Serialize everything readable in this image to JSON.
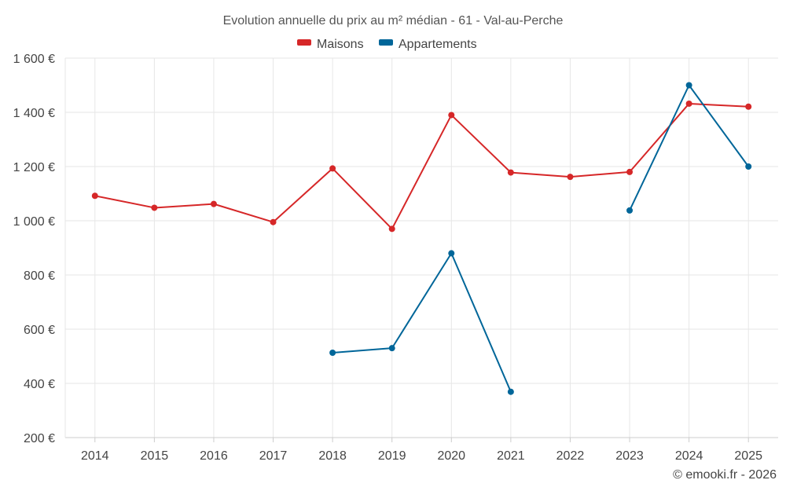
{
  "chart_data": {
    "type": "line",
    "title": "Evolution annuelle du prix au m² médian - 61 - Val-au-Perche",
    "x": [
      "2014",
      "2015",
      "2016",
      "2017",
      "2018",
      "2019",
      "2020",
      "2021",
      "2022",
      "2023",
      "2024",
      "2025"
    ],
    "ylim": [
      200,
      1600
    ],
    "yticks": [
      200,
      400,
      600,
      800,
      1000,
      1200,
      1400,
      1600
    ],
    "ytick_labels": [
      "200 €",
      "400 €",
      "600 €",
      "800 €",
      "1 000 €",
      "1 200 €",
      "1 400 €",
      "1 600 €"
    ],
    "grid": true,
    "legend_position": "top-center",
    "series": [
      {
        "name": "Maisons",
        "color": "#d62728",
        "values": [
          1092,
          1048,
          1062,
          995,
          1193,
          970,
          1390,
          1178,
          1162,
          1180,
          1432,
          1421
        ]
      },
      {
        "name": "Appartements",
        "color": "#006699",
        "values": [
          null,
          null,
          null,
          null,
          513,
          530,
          880,
          369,
          null,
          1038,
          1500,
          1200
        ]
      }
    ],
    "credit": "© emooki.fr - 2026"
  }
}
